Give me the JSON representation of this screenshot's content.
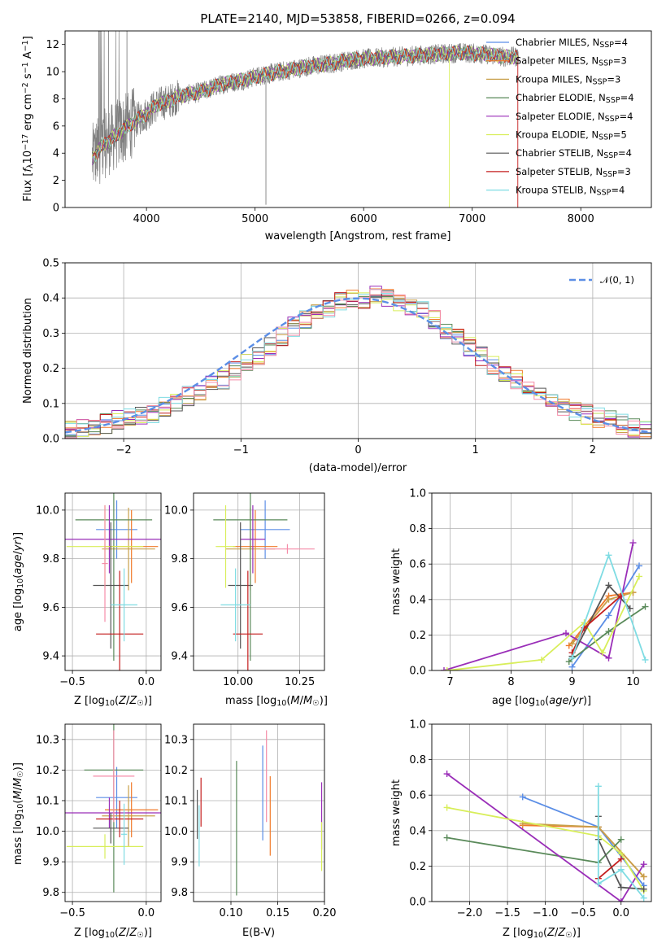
{
  "colors": {
    "Chabrier MILES": "#5b8ee6",
    "Salpeter MILES": "#f07a2a",
    "Kroupa MILES": "#c8a04a",
    "Chabrier ELODIE": "#5a8a5a",
    "Salpeter ELODIE": "#9a2eb8",
    "Kroupa ELODIE": "#d8ee5a",
    "Chabrier STELIB": "#555555",
    "Salpeter STELIB": "#c41e1e",
    "Kroupa STELIB": "#7fdce3",
    "pink": "#f58ca8",
    "data": "#808080",
    "normal": "#5b8ee6",
    "grid": "#b0b0b0"
  },
  "chart_data": [
    {
      "type": "line",
      "title": "PLATE=2140, MJD=53858, FIBERID=0266, z=0.094",
      "xlabel": "wavelength [Angstrom, rest frame]",
      "ylabel": "Flux [fλ10⁻¹⁷ erg cm⁻² s⁻¹ A⁻¹]",
      "xlim": [
        3250,
        8650
      ],
      "ylim": [
        0,
        13
      ],
      "xticks": [
        4000,
        5000,
        6000,
        7000,
        8000
      ],
      "yticks": [
        0,
        2,
        4,
        6,
        8,
        10,
        12
      ],
      "grid": false,
      "legend_position": "right",
      "legend": [
        "Chabrier MILES, N_SSP=4",
        "Salpeter MILES, N_SSP=3",
        "Kroupa MILES, N_SSP=3",
        "Chabrier ELODIE, N_SSP=4",
        "Salpeter ELODIE, N_SSP=4",
        "Kroupa ELODIE, N_SSP=5",
        "Chabrier STELIB, N_SSP=4",
        "Salpeter STELIB, N_SSP=3",
        "Kroupa STELIB, N_SSP=4"
      ],
      "model_continuum": {
        "x": [
          3500,
          3600,
          3700,
          3800,
          3900,
          4000,
          4100,
          4200,
          4300,
          4500,
          4700,
          4900,
          5100,
          5300,
          5500,
          5700,
          5900,
          6100,
          6300,
          6500,
          6700,
          6900,
          7100,
          7300,
          7500
        ],
        "y": [
          3.6,
          4.6,
          5.2,
          5.8,
          6.4,
          6.9,
          7.6,
          7.8,
          8.2,
          8.5,
          9.1,
          9.4,
          9.8,
          10.1,
          10.4,
          10.6,
          10.9,
          11.0,
          11.1,
          11.2,
          11.3,
          11.4,
          11.3,
          11.1,
          11.1
        ]
      }
    },
    {
      "type": "histogram",
      "xlabel": "(data-model)/error",
      "ylabel": "Normed distribution",
      "xlim": [
        -2.5,
        2.5
      ],
      "ylim": [
        0,
        0.5
      ],
      "xticks": [
        -2,
        -1,
        0,
        1,
        2
      ],
      "yticks": [
        0.0,
        0.1,
        0.2,
        0.3,
        0.4,
        0.5
      ],
      "grid": true,
      "legend": [
        "𝒩(0, 1)"
      ],
      "legend_position": "top-right",
      "bins": [
        -2.5,
        -2.4,
        -2.3,
        -2.2,
        -2.1,
        -2.0,
        -1.9,
        -1.8,
        -1.7,
        -1.6,
        -1.5,
        -1.4,
        -1.3,
        -1.2,
        -1.1,
        -1.0,
        -0.9,
        -0.8,
        -0.7,
        -0.6,
        -0.5,
        -0.4,
        -0.3,
        -0.2,
        -0.1,
        0.0,
        0.1,
        0.2,
        0.3,
        0.4,
        0.5,
        0.6,
        0.7,
        0.8,
        0.9,
        1.0,
        1.1,
        1.2,
        1.3,
        1.4,
        1.5,
        1.6,
        1.7,
        1.8,
        1.9,
        2.0,
        2.1,
        2.2,
        2.3,
        2.4
      ],
      "approx_density": [
        0.025,
        0.028,
        0.035,
        0.042,
        0.05,
        0.055,
        0.062,
        0.07,
        0.09,
        0.105,
        0.12,
        0.135,
        0.15,
        0.17,
        0.19,
        0.215,
        0.235,
        0.26,
        0.29,
        0.32,
        0.34,
        0.355,
        0.37,
        0.39,
        0.395,
        0.4,
        0.405,
        0.395,
        0.385,
        0.37,
        0.36,
        0.34,
        0.31,
        0.285,
        0.26,
        0.235,
        0.21,
        0.19,
        0.165,
        0.145,
        0.13,
        0.11,
        0.095,
        0.08,
        0.07,
        0.058,
        0.05,
        0.04,
        0.033,
        0.025
      ]
    },
    {
      "type": "scatter",
      "xlabel": "Z [log₁₀(Z/Z☉)]",
      "ylabel": "age  [log₁₀(age/yr)]",
      "xlim": [
        -0.55,
        0.1
      ],
      "ylim": [
        9.34,
        10.07
      ],
      "xticks": [
        -0.5,
        0.0
      ],
      "yticks": [
        9.4,
        9.6,
        9.8,
        10.0
      ],
      "grid": true,
      "points": [
        {
          "model": "Chabrier MILES",
          "x": -0.2,
          "y": 9.92,
          "xerr": 0.14,
          "yerr": 0.12
        },
        {
          "model": "Salpeter MILES",
          "x": -0.1,
          "y": 9.85,
          "xerr": 0.18,
          "yerr": 0.15
        },
        {
          "model": "Kroupa MILES",
          "x": -0.12,
          "y": 9.84,
          "xerr": 0.18,
          "yerr": 0.17
        },
        {
          "model": "Chabrier ELODIE",
          "x": -0.22,
          "y": 9.96,
          "xerr": 0.26,
          "yerr": 0.58
        },
        {
          "model": "Salpeter ELODIE",
          "x": -0.25,
          "y": 9.88,
          "xerr": 0.35,
          "yerr": 0.14
        },
        {
          "model": "Kroupa ELODIE",
          "x": -0.28,
          "y": 9.85,
          "xerr": 0.26,
          "yerr": 0.17
        },
        {
          "model": "Chabrier STELIB",
          "x": -0.24,
          "y": 9.69,
          "xerr": 0.12,
          "yerr": 0.26
        },
        {
          "model": "Salpeter STELIB",
          "x": -0.18,
          "y": 9.49,
          "xerr": 0.16,
          "yerr": 0.26
        },
        {
          "model": "Kroupa STELIB",
          "x": -0.15,
          "y": 9.61,
          "xerr": 0.09,
          "yerr": 0.15
        },
        {
          "model": "pink",
          "x": -0.28,
          "y": 9.78,
          "xerr": 0.02,
          "yerr": 0.24
        }
      ]
    },
    {
      "type": "scatter",
      "xlabel": "mass [log₁₀(M/M☉)]",
      "xlim": [
        9.82,
        10.35
      ],
      "ylim": [
        9.34,
        10.07
      ],
      "xticks": [
        10.0,
        10.25
      ],
      "yticks": [
        9.4,
        9.6,
        9.8,
        10.0
      ],
      "grid": true,
      "points": [
        {
          "model": "Chabrier MILES",
          "x": 10.11,
          "y": 9.92,
          "xerr": 0.1,
          "yerr": 0.12
        },
        {
          "model": "Salpeter MILES",
          "x": 10.07,
          "y": 9.85,
          "xerr": 0.09,
          "yerr": 0.15
        },
        {
          "model": "Kroupa MILES",
          "x": 10.05,
          "y": 9.84,
          "xerr": 0.1,
          "yerr": 0.17
        },
        {
          "model": "Chabrier ELODIE",
          "x": 10.05,
          "y": 9.96,
          "xerr": 0.15,
          "yerr": 0.58
        },
        {
          "model": "Salpeter ELODIE",
          "x": 10.06,
          "y": 9.88,
          "xerr": 0.05,
          "yerr": 0.14
        },
        {
          "model": "Kroupa ELODIE",
          "x": 9.95,
          "y": 9.85,
          "xerr": 0.04,
          "yerr": 0.17
        },
        {
          "model": "Chabrier STELIB",
          "x": 10.01,
          "y": 9.69,
          "xerr": 0.05,
          "yerr": 0.26
        },
        {
          "model": "Salpeter STELIB",
          "x": 10.04,
          "y": 9.49,
          "xerr": 0.06,
          "yerr": 0.26
        },
        {
          "model": "Kroupa STELIB",
          "x": 9.99,
          "y": 9.61,
          "xerr": 0.06,
          "yerr": 0.15
        },
        {
          "model": "pink",
          "x": 10.2,
          "y": 9.84,
          "xerr": 0.11,
          "yerr": 0.02
        }
      ]
    },
    {
      "type": "line",
      "xlabel": "age  [log₁₀(age/yr)]",
      "ylabel": "mass weight",
      "xlim": [
        6.7,
        10.3
      ],
      "ylim": [
        0,
        1
      ],
      "xticks": [
        7,
        8,
        9,
        10
      ],
      "yticks": [
        0.0,
        0.2,
        0.4,
        0.6,
        0.8,
        1.0
      ],
      "grid": true,
      "series": [
        {
          "model": "Chabrier MILES",
          "x": [
            9.0,
            9.6,
            10.1
          ],
          "y": [
            0.02,
            0.31,
            0.59
          ]
        },
        {
          "model": "Salpeter MILES",
          "x": [
            8.95,
            9.6,
            10.0
          ],
          "y": [
            0.14,
            0.42,
            0.44
          ]
        },
        {
          "model": "Kroupa MILES",
          "x": [
            9.0,
            9.6,
            10.0
          ],
          "y": [
            0.15,
            0.4,
            0.44
          ]
        },
        {
          "model": "Chabrier ELODIE",
          "x": [
            8.95,
            9.6,
            10.2
          ],
          "y": [
            0.05,
            0.22,
            0.36
          ]
        },
        {
          "model": "Salpeter ELODIE",
          "x": [
            6.9,
            8.9,
            9.6,
            10.0
          ],
          "y": [
            0.0,
            0.21,
            0.07,
            0.72
          ]
        },
        {
          "model": "Kroupa ELODIE",
          "x": [
            6.95,
            8.5,
            9.2,
            9.5,
            10.1
          ],
          "y": [
            0.0,
            0.06,
            0.27,
            0.1,
            0.53
          ]
        },
        {
          "model": "Chabrier STELIB",
          "x": [
            9.0,
            9.6,
            9.95
          ],
          "y": [
            0.08,
            0.48,
            0.35
          ]
        },
        {
          "model": "Salpeter STELIB",
          "x": [
            9.0,
            9.2,
            9.8
          ],
          "y": [
            0.1,
            0.24,
            0.42
          ]
        },
        {
          "model": "Kroupa STELIB",
          "x": [
            9.0,
            9.6,
            10.2
          ],
          "y": [
            0.07,
            0.65,
            0.06
          ]
        }
      ]
    },
    {
      "type": "scatter",
      "xlabel": "Z [log₁₀(Z/Z☉)]",
      "ylabel": "mass [log₁₀(M/M☉)]",
      "xlim": [
        -0.55,
        0.1
      ],
      "ylim": [
        9.77,
        10.35
      ],
      "xticks": [
        -0.5,
        0.0
      ],
      "yticks": [
        9.8,
        9.9,
        10.0,
        10.1,
        10.2,
        10.3
      ],
      "grid": true,
      "points": [
        {
          "model": "Chabrier MILES",
          "x": -0.2,
          "y": 10.11,
          "xerr": 0.14,
          "yerr": 0.1
        },
        {
          "model": "Salpeter MILES",
          "x": -0.1,
          "y": 10.07,
          "xerr": 0.18,
          "yerr": 0.09
        },
        {
          "model": "Kroupa MILES",
          "x": -0.12,
          "y": 10.05,
          "xerr": 0.18,
          "yerr": 0.1
        },
        {
          "model": "Chabrier ELODIE",
          "x": -0.22,
          "y": 10.2,
          "xerr": 0.2,
          "yerr": 0.4
        },
        {
          "model": "Salpeter ELODIE",
          "x": -0.25,
          "y": 10.06,
          "xerr": 0.35,
          "yerr": 0.05
        },
        {
          "model": "Kroupa ELODIE",
          "x": -0.28,
          "y": 9.95,
          "xerr": 0.26,
          "yerr": 0.04
        },
        {
          "model": "Chabrier STELIB",
          "x": -0.24,
          "y": 10.01,
          "xerr": 0.12,
          "yerr": 0.05
        },
        {
          "model": "Salpeter STELIB",
          "x": -0.18,
          "y": 10.04,
          "xerr": 0.16,
          "yerr": 0.06
        },
        {
          "model": "Kroupa STELIB",
          "x": -0.15,
          "y": 9.99,
          "xerr": 0.02,
          "yerr": 0.1
        },
        {
          "model": "pink",
          "x": -0.22,
          "y": 10.18,
          "xerr": 0.14,
          "yerr": 0.15
        }
      ]
    },
    {
      "type": "scatter",
      "xlabel": "E(B-V)",
      "xlim": [
        0.06,
        0.2
      ],
      "ylim": [
        9.77,
        10.35
      ],
      "xticks": [
        0.1,
        0.15,
        0.2
      ],
      "xtick_labels": [
        "0.10",
        "0.15",
        "0.20"
      ],
      "yticks": [
        9.8,
        9.9,
        10.0,
        10.1,
        10.2,
        10.3
      ],
      "grid": true,
      "points": [
        {
          "model": "Chabrier MILES",
          "x": 0.134,
          "y": 10.125,
          "yerr": 0.155
        },
        {
          "model": "Salpeter MILES",
          "x": 0.142,
          "y": 10.05,
          "yerr": 0.13
        },
        {
          "model": "Chabrier ELODIE",
          "x": 0.106,
          "y": 10.01,
          "yerr": 0.22
        },
        {
          "model": "Salpeter ELODIE",
          "x": 0.197,
          "y": 10.05,
          "yerr": 0.11
        },
        {
          "model": "Kroupa ELODIE",
          "x": 0.197,
          "y": 9.95,
          "yerr": 0.08
        },
        {
          "model": "Chabrier STELIB",
          "x": 0.064,
          "y": 10.055,
          "yerr": 0.08
        },
        {
          "model": "Salpeter STELIB",
          "x": 0.068,
          "y": 10.095,
          "yerr": 0.08
        },
        {
          "model": "Kroupa STELIB",
          "x": 0.066,
          "y": 9.985,
          "yerr": 0.1
        },
        {
          "model": "pink",
          "x": 0.138,
          "y": 10.18,
          "yerr": 0.15
        }
      ]
    },
    {
      "type": "line",
      "xlabel": "Z [log₁₀(Z/Z☉)]",
      "ylabel": "mass weight",
      "xlim": [
        -2.5,
        0.4
      ],
      "ylim": [
        0,
        1
      ],
      "xticks": [
        -2.0,
        -1.5,
        -1.0,
        -0.5,
        0.0
      ],
      "yticks": [
        0.0,
        0.2,
        0.4,
        0.6,
        0.8,
        1.0
      ],
      "grid": true,
      "series": [
        {
          "model": "Chabrier MILES",
          "x": [
            -1.3,
            -0.3,
            0.3
          ],
          "y": [
            0.59,
            0.42,
            0.09
          ]
        },
        {
          "model": "Salpeter MILES",
          "x": [
            -1.3,
            -0.3,
            0.3
          ],
          "y": [
            0.43,
            0.42,
            0.14
          ]
        },
        {
          "model": "Kroupa MILES",
          "x": [
            -1.3,
            -0.3,
            0.3
          ],
          "y": [
            0.44,
            0.42,
            0.14
          ]
        },
        {
          "model": "Chabrier ELODIE",
          "x": [
            -2.3,
            -0.3,
            0.0
          ],
          "y": [
            0.36,
            0.22,
            0.35
          ]
        },
        {
          "model": "Salpeter ELODIE",
          "x": [
            -2.3,
            0.0,
            0.3
          ],
          "y": [
            0.72,
            0.0,
            0.21
          ]
        },
        {
          "model": "Kroupa ELODIE",
          "x": [
            -2.3,
            -0.3,
            0.0,
            0.3
          ],
          "y": [
            0.53,
            0.37,
            0.27,
            0.06
          ]
        },
        {
          "model": "Chabrier STELIB",
          "x": [
            -0.3,
            -0.3,
            0.0,
            0.3
          ],
          "y": [
            0.48,
            0.35,
            0.08,
            0.07
          ]
        },
        {
          "model": "Salpeter STELIB",
          "x": [
            -0.3,
            0.0
          ],
          "y": [
            0.13,
            0.24
          ]
        },
        {
          "model": "Kroupa STELIB",
          "x": [
            -0.3,
            -0.3,
            0.0,
            0.3
          ],
          "y": [
            0.65,
            0.1,
            0.18,
            0.02
          ]
        }
      ]
    }
  ]
}
